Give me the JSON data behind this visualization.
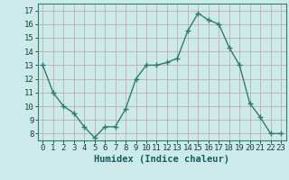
{
  "x": [
    0,
    1,
    2,
    3,
    4,
    5,
    6,
    7,
    8,
    9,
    10,
    11,
    12,
    13,
    14,
    15,
    16,
    17,
    18,
    19,
    20,
    21,
    22,
    23
  ],
  "y": [
    13,
    11,
    10,
    9.5,
    8.5,
    7.7,
    8.5,
    8.5,
    9.8,
    12.0,
    13.0,
    13.0,
    13.2,
    13.5,
    15.5,
    16.8,
    16.3,
    16.0,
    14.3,
    13.0,
    10.2,
    9.2,
    8.0,
    8.0
  ],
  "line_color": "#2e7d6e",
  "marker": "D",
  "marker_size": 2.2,
  "linewidth": 1.0,
  "bg_color": "#cceaea",
  "grid_color": "#c0a0a0",
  "xlabel": "Humidex (Indice chaleur)",
  "ylim": [
    7.5,
    17.5
  ],
  "xlim": [
    -0.5,
    23.5
  ],
  "yticks": [
    8,
    9,
    10,
    11,
    12,
    13,
    14,
    15,
    16,
    17
  ],
  "xticks": [
    0,
    1,
    2,
    3,
    4,
    5,
    6,
    7,
    8,
    9,
    10,
    11,
    12,
    13,
    14,
    15,
    16,
    17,
    18,
    19,
    20,
    21,
    22,
    23
  ],
  "xlabel_fontsize": 7.5,
  "tick_fontsize": 6.5
}
